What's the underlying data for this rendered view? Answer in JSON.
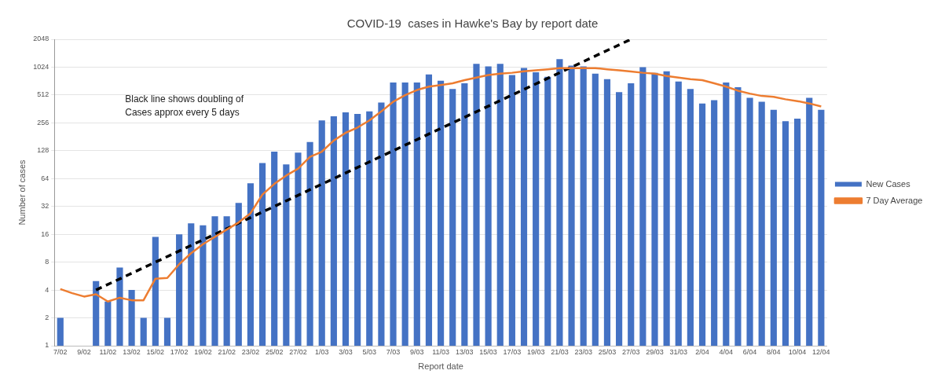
{
  "chart_data": {
    "type": "bar",
    "title": "COVID-19  cases in Hawke's Bay by report date",
    "xlabel": "Report date",
    "ylabel": "Number of cases",
    "categories": [
      "7/02",
      null,
      "9/02",
      null,
      "11/02",
      null,
      "13/02",
      null,
      "15/02",
      null,
      "17/02",
      null,
      "19/02",
      null,
      "21/02",
      null,
      "23/02",
      null,
      "25/02",
      null,
      "27/02",
      null,
      "1/03",
      null,
      "3/03",
      null,
      "5/03",
      null,
      "7/03",
      null,
      "9/03",
      null,
      "11/03",
      null,
      "13/03",
      null,
      "15/03",
      null,
      "17/03",
      null,
      "19/03",
      null,
      "21/03",
      null,
      "23/03",
      null,
      "25/03",
      null,
      "27/03",
      null,
      "29/03",
      null,
      "31/03",
      null,
      "2/04",
      null,
      "4/04",
      null,
      "6/04",
      null,
      "8/04",
      null,
      "10/04",
      null,
      "12/04"
    ],
    "series": [
      {
        "name": "New Cases",
        "color": "#4472c4",
        "values": [
          2,
          null,
          null,
          5,
          3,
          7,
          4,
          2,
          15,
          2,
          16,
          21,
          20,
          25,
          25,
          35,
          57,
          94,
          125,
          91,
          122,
          159,
          272,
          302,
          333,
          320,
          340,
          424,
          700,
          700,
          700,
          855,
          730,
          596,
          685,
          1110,
          1045,
          1110,
          840,
          1005,
          900,
          805,
          1250,
          1065,
          1045,
          872,
          760,
          550,
          685,
          1024,
          890,
          925,
          715,
          596,
          415,
          450,
          700,
          620,
          478,
          433,
          354,
          267,
          284,
          478,
          354
        ]
      },
      {
        "name": "7 Day Average",
        "type": "line",
        "color": "#ed7d31",
        "marker": "none",
        "line_style": "solid",
        "values": [
          4.1,
          3.7,
          3.4,
          3.6,
          3.0,
          3.3,
          3.1,
          3.1,
          5.3,
          5.4,
          7.6,
          10,
          12.5,
          15,
          18,
          21.5,
          27,
          43,
          56,
          69,
          82,
          110,
          125,
          165,
          200,
          228,
          272,
          340,
          433,
          510,
          580,
          630,
          655,
          685,
          740,
          790,
          840,
          870,
          890,
          925,
          945,
          970,
          1000,
          1000,
          1000,
          1000,
          970,
          945,
          920,
          890,
          870,
          820,
          790,
          760,
          740,
          685,
          630,
          570,
          530,
          500,
          490,
          460,
          440,
          415,
          385
        ]
      },
      {
        "type": "line",
        "color": "#000000",
        "marker": "none",
        "line_style": "dashed",
        "values": [
          null,
          null,
          null,
          4,
          null,
          null,
          null,
          null,
          null,
          null,
          null,
          null,
          null,
          null,
          null,
          null,
          null,
          null,
          null,
          null,
          null,
          null,
          null,
          null,
          null,
          null,
          null,
          null,
          null,
          null,
          null,
          null,
          null,
          null,
          null,
          null,
          null,
          null,
          null,
          null,
          null,
          null,
          null,
          null,
          null,
          null,
          null,
          null,
          2048,
          null,
          null,
          null,
          null,
          null,
          null,
          null,
          null,
          null,
          null,
          null,
          null,
          null,
          null,
          null,
          null
        ]
      }
    ],
    "log": "y",
    "ylim": [
      1,
      2048
    ],
    "yticks": [
      1,
      2,
      4,
      8,
      16,
      32,
      64,
      128,
      256,
      512,
      1024,
      2048
    ],
    "grid": "y",
    "legend": "right",
    "annotations": [
      "Black line shows doubling of\nCases approx every 5 days"
    ]
  }
}
